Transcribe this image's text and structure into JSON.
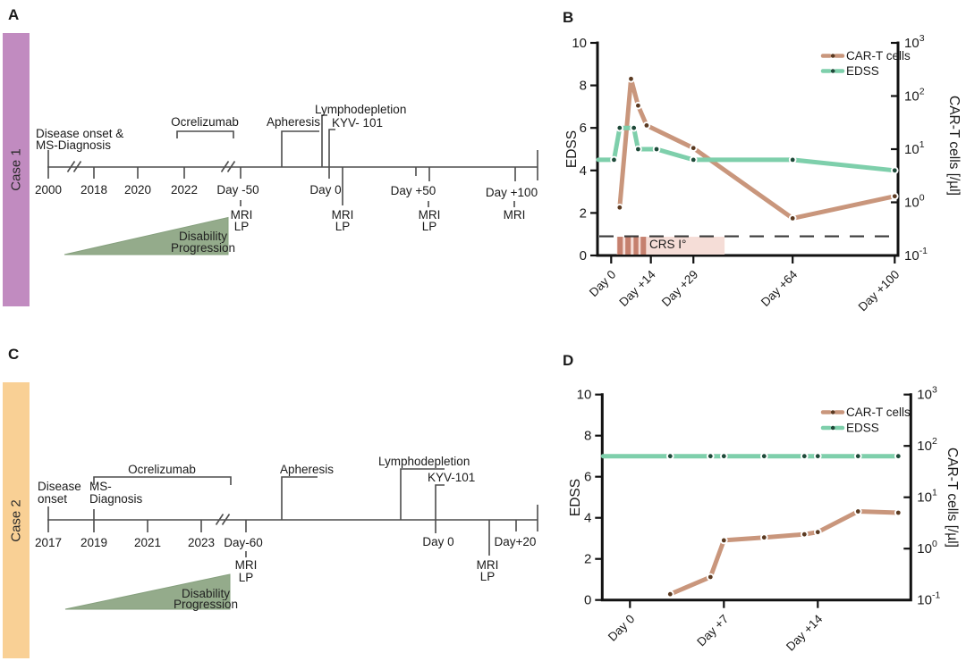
{
  "labels": {
    "mri": "MRI",
    "lp": "LP"
  },
  "colors": {
    "case1_bar": "#c18bc0",
    "case2_bar": "#f9d095",
    "triangle": "#94ab8b",
    "triangle_edge": "#86a07e",
    "timeline": "#4d4d4d",
    "axis": "#111111",
    "cart_line": "#c9967c",
    "cart_dot": "#5b3a21",
    "edss_line": "#7ecfab",
    "edss_dot": "#1e4a39",
    "crs_band": "#f5ddd7",
    "crs_stripe": "#c5806e"
  },
  "panel_a": {
    "label": "A",
    "case": "Case 1",
    "disease_line1": "Disease onset &",
    "disease_line2": "MS-Diagnosis",
    "ocrelizumab": "Ocrelizumab",
    "apheresis": "Apheresis",
    "lymphodepletion": "Lymphodepletion",
    "kyv": "KYV- 101",
    "years": [
      "2000",
      "2018",
      "2020",
      "2022"
    ],
    "days": {
      "m50": "Day -50",
      "d0": "Day 0",
      "p50": "Day +50",
      "p100": "Day +100"
    },
    "disability": "Disability",
    "progression": "Progression"
  },
  "panel_b": {
    "label": "B"
  },
  "panel_c": {
    "label": "C",
    "case": "Case 2",
    "disease_line1": "Disease",
    "disease_line2": "onset",
    "ms_line1": "MS-",
    "ms_line2": "Diagnosis",
    "ocrelizumab": "Ocrelizumab",
    "apheresis": "Apheresis",
    "lymphodepletion": "Lymphodepletion",
    "kyv": "KYV-101",
    "years": [
      "2017",
      "2019",
      "2021",
      "2023"
    ],
    "days": {
      "m60": "Day-60",
      "d0": "Day 0",
      "p20": "Day+20"
    },
    "disability": "Disability",
    "progression": "Progression"
  },
  "panel_d": {
    "label": "D"
  },
  "chart_data": [
    {
      "id": "B",
      "type": "line",
      "ylabel_left": "EDSS",
      "ylabel_right": "CAR-T cells [/µl]",
      "y_left_ticks": [
        0,
        2,
        4,
        6,
        8,
        10
      ],
      "y_left_range": [
        0,
        10
      ],
      "y_right_tick_exponents": [
        3,
        2,
        1,
        0,
        -1
      ],
      "y_right_range_log": [
        -1,
        3
      ],
      "x_tick_days": [
        0,
        14,
        29,
        64,
        100
      ],
      "x_tick_labels": [
        "Day 0",
        "Day +14",
        "Day +29",
        "Day +64",
        "Day +100"
      ],
      "legend": [
        "CAR-T cells",
        "EDSS"
      ],
      "detection_line_edss": 0.9,
      "crs": {
        "label": "CRS I°",
        "start_day": 2,
        "end_day": 40,
        "stripe_days": [
          [
            2.2,
            4.1
          ],
          [
            5.0,
            6.9
          ],
          [
            7.9,
            9.6
          ],
          [
            10.4,
            12.3
          ]
        ]
      },
      "series": [
        {
          "name": "CAR-T cells",
          "axis": "right",
          "color": "#c9967c",
          "dot_color": "#5b3a21",
          "days": [
            3,
            7,
            9.5,
            12.5,
            29,
            64,
            100
          ],
          "cart_per_ul": [
            0.8,
            210,
            66,
            28,
            10.5,
            0.5,
            1.3
          ]
        },
        {
          "name": "EDSS",
          "axis": "left",
          "color": "#7ecfab",
          "dot_color": "#1e4a39",
          "extend_left": true,
          "days": [
            1,
            3,
            8,
            9.5,
            16,
            29,
            64,
            100
          ],
          "values": [
            4.5,
            6,
            6,
            5,
            5,
            4.5,
            4.5,
            4
          ]
        }
      ]
    },
    {
      "id": "D",
      "type": "line",
      "ylabel_left": "EDSS",
      "ylabel_right": "CAR-T cells [/µl]",
      "y_left_ticks": [
        0,
        2,
        4,
        6,
        8,
        10
      ],
      "y_left_range": [
        0,
        10
      ],
      "y_right_tick_exponents": [
        3,
        2,
        1,
        0,
        -1
      ],
      "y_right_range_log": [
        -1,
        3
      ],
      "x_tick_days": [
        0,
        7,
        14
      ],
      "x_tick_labels": [
        "Day 0",
        "Day +7",
        "Day +14"
      ],
      "legend": [
        "CAR-T cells",
        "EDSS"
      ],
      "series": [
        {
          "name": "CAR-T cells",
          "axis": "right",
          "color": "#c9967c",
          "dot_color": "#5b3a21",
          "days": [
            3,
            6,
            7,
            10,
            13,
            14,
            17,
            20
          ],
          "cart_per_ul": [
            0.13,
            0.28,
            1.45,
            1.65,
            1.9,
            2.1,
            5.3,
            5.0
          ]
        },
        {
          "name": "EDSS",
          "axis": "left",
          "color": "#7ecfab",
          "dot_color": "#1e4a39",
          "extend_left": true,
          "days": [
            3,
            6,
            7,
            10,
            13,
            14,
            17,
            20
          ],
          "values": [
            7,
            7,
            7,
            7,
            7,
            7,
            7,
            7
          ]
        }
      ]
    }
  ]
}
